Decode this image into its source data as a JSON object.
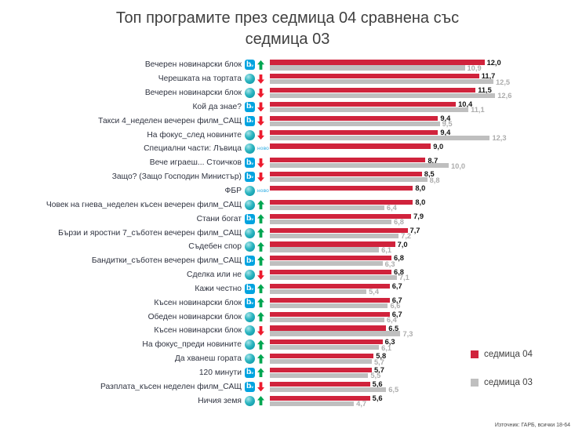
{
  "source": {
    "text": "Източник: ГАРБ, всички 18-64"
  },
  "channels": {
    "btv": {
      "main": "b",
      "sub": "tv",
      "color": "#00a3e0"
    },
    "nova": {
      "color": "#00a0af"
    }
  },
  "chart_data": {
    "type": "bar",
    "orientation": "horizontal",
    "title": "Топ програмите през седмица 04 сравнена със седмица 03",
    "new_label": "ново",
    "xlim": [
      0,
      13
    ],
    "grid": false,
    "legend_position": "right-bottom",
    "change_colors": {
      "up": "#00a651",
      "down": "#ed1b2e",
      "new": "#29abe2"
    },
    "series": [
      {
        "name": "седмица 04",
        "color": "#d0233c"
      },
      {
        "name": "седмица 03",
        "color": "#bfbfbf"
      }
    ],
    "rows": [
      {
        "label": "Вечерен новинарски блок",
        "channel": "btv",
        "change": "up",
        "week04": 12.0,
        "week03": 10.9
      },
      {
        "label": "Черешката на тортата",
        "channel": "nova",
        "change": "down",
        "week04": 11.7,
        "week03": 12.5
      },
      {
        "label": "Вечерен новинарски блок",
        "channel": "nova",
        "change": "down",
        "week04": 11.5,
        "week03": 12.6
      },
      {
        "label": "Кой да знае?",
        "channel": "btv",
        "change": "down",
        "week04": 10.4,
        "week03": 11.1
      },
      {
        "label": "Такси 4_неделен вечерен филм_САЩ",
        "channel": "btv",
        "change": "down",
        "week04": 9.4,
        "week03": 9.5
      },
      {
        "label": "На фокус_след новините",
        "channel": "nova",
        "change": "down",
        "week04": 9.4,
        "week03": 12.3
      },
      {
        "label": "Специални части: Лъвица",
        "channel": "nova",
        "change": "new",
        "week04": 9.0,
        "week03": null
      },
      {
        "label": "Вече играеш... Стоичков",
        "channel": "btv",
        "change": "down",
        "week04": 8.7,
        "week03": 10.0
      },
      {
        "label": "Защо? (Защо Господин Министър)",
        "channel": "btv",
        "change": "down",
        "week04": 8.5,
        "week03": 8.8
      },
      {
        "label": "ФБР",
        "channel": "nova",
        "change": "new",
        "week04": 8.0,
        "week03": null
      },
      {
        "label": "Човек на гнева_неделен късен вечерен филм_САЩ",
        "channel": "nova",
        "change": "up",
        "week04": 8.0,
        "week03": 6.4
      },
      {
        "label": "Стани богат",
        "channel": "btv",
        "change": "up",
        "week04": 7.9,
        "week03": 6.8
      },
      {
        "label": "Бързи и яростни 7_съботен вечерен филм_САЩ",
        "channel": "nova",
        "change": "up",
        "week04": 7.7,
        "week03": 7.2
      },
      {
        "label": "Съдебен спор",
        "channel": "nova",
        "change": "up",
        "week04": 7.0,
        "week03": 6.1
      },
      {
        "label": "Бандитки_съботен вечерен филм_САЩ",
        "channel": "btv",
        "change": "up",
        "week04": 6.8,
        "week03": 6.3
      },
      {
        "label": "Сделка или не",
        "channel": "nova",
        "change": "down",
        "week04": 6.8,
        "week03": 7.1
      },
      {
        "label": "Кажи честно",
        "channel": "btv",
        "change": "up",
        "week04": 6.7,
        "week03": 5.4
      },
      {
        "label": "Късен новинарски блок",
        "channel": "btv",
        "change": "up",
        "week04": 6.7,
        "week03": 6.6
      },
      {
        "label": "Обеден новинарски блок",
        "channel": "nova",
        "change": "up",
        "week04": 6.7,
        "week03": 6.4
      },
      {
        "label": "Късен новинарски блок",
        "channel": "nova",
        "change": "down",
        "week04": 6.5,
        "week03": 7.3
      },
      {
        "label": "На фокус_преди новините",
        "channel": "nova",
        "change": "up",
        "week04": 6.3,
        "week03": 6.1
      },
      {
        "label": "Да хванеш гората",
        "channel": "nova",
        "change": "up",
        "week04": 5.8,
        "week03": 5.7
      },
      {
        "label": "120 минути",
        "channel": "btv",
        "change": "up",
        "week04": 5.7,
        "week03": 5.5
      },
      {
        "label": "Разплата_късен неделен филм_САЩ",
        "channel": "btv",
        "change": "down",
        "week04": 5.6,
        "week03": 6.5
      },
      {
        "label": "Ничия земя",
        "channel": "nova",
        "change": "up",
        "week04": 5.6,
        "week03": 4.7
      }
    ]
  }
}
